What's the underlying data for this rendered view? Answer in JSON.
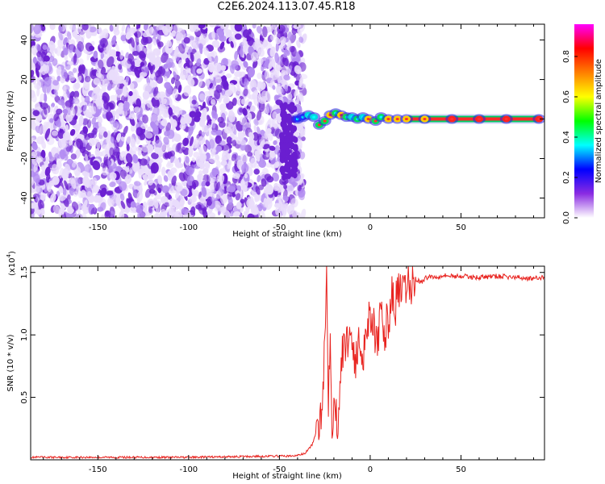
{
  "title": "C2E6.2024.113.07.45.R18",
  "colors": {
    "axis": "#000000",
    "snr_line": "#e8231f",
    "noise_light": "#e9dcfb",
    "noise_mid": "#b38cf2",
    "noise_dark": "#6a1ed0",
    "colorbar_stops": [
      "#ffffff",
      "#8a2be2",
      "#0000ff",
      "#00ffff",
      "#00ff00",
      "#ffff00",
      "#ff7f00",
      "#ff0000",
      "#ff00ff"
    ]
  },
  "colorbar": {
    "label": "Normalized spectral amplitude",
    "ticks": [
      "0.0",
      "0.2",
      "0.4",
      "0.6",
      "0.8"
    ],
    "tick_values": [
      0.0,
      0.2,
      0.4,
      0.6,
      0.8
    ],
    "range": [
      0,
      0.96
    ]
  },
  "chart_data": [
    {
      "type": "heatmap",
      "title": "",
      "xlabel": "Height of straight line (km)",
      "ylabel": "Frequency (Hz)",
      "xlim": [
        -187,
        96
      ],
      "ylim": [
        -50,
        48
      ],
      "x_ticks": [
        "-150",
        "-100",
        "-50",
        "0",
        "50"
      ],
      "x_tick_values": [
        -150,
        -100,
        -50,
        0,
        50
      ],
      "y_ticks": [
        "-40",
        "-20",
        "0",
        "20",
        "40"
      ],
      "y_tick_values": [
        -40,
        -20,
        0,
        20,
        40
      ],
      "noise_region_x": [
        -187,
        -40
      ],
      "signal_track": [
        {
          "x": -40,
          "y": 0,
          "a": 0.35
        },
        {
          "x": -37,
          "y": 1,
          "a": 0.45
        },
        {
          "x": -34,
          "y": 2,
          "a": 0.55
        },
        {
          "x": -31,
          "y": 1,
          "a": 0.5
        },
        {
          "x": -28,
          "y": -3,
          "a": 0.65
        },
        {
          "x": -25,
          "y": -1,
          "a": 0.7
        },
        {
          "x": -22,
          "y": 2,
          "a": 0.75
        },
        {
          "x": -19,
          "y": 3,
          "a": 0.6
        },
        {
          "x": -16,
          "y": 2,
          "a": 0.85
        },
        {
          "x": -13,
          "y": 1,
          "a": 0.6
        },
        {
          "x": -10,
          "y": 1,
          "a": 0.55
        },
        {
          "x": -7,
          "y": 0,
          "a": 0.6
        },
        {
          "x": -4,
          "y": 1,
          "a": 0.55
        },
        {
          "x": -1,
          "y": 0,
          "a": 0.75
        },
        {
          "x": 3,
          "y": -1,
          "a": 0.7
        },
        {
          "x": 6,
          "y": 1,
          "a": 0.6
        },
        {
          "x": 10,
          "y": 0,
          "a": 0.8
        },
        {
          "x": 15,
          "y": 0,
          "a": 0.85
        },
        {
          "x": 20,
          "y": 0,
          "a": 0.8
        },
        {
          "x": 30,
          "y": 0,
          "a": 0.85
        },
        {
          "x": 45,
          "y": 0,
          "a": 0.9
        },
        {
          "x": 60,
          "y": 0,
          "a": 0.92
        },
        {
          "x": 75,
          "y": 0,
          "a": 0.93
        },
        {
          "x": 93,
          "y": 0,
          "a": 0.95
        }
      ]
    },
    {
      "type": "line",
      "title": "",
      "xlabel": "Height of straight line (km)",
      "ylabel": "SNR (10 * v/v)",
      "y_scale_label": "(x10",
      "y_scale_exp": "4",
      "xlim": [
        -187,
        96
      ],
      "ylim": [
        0,
        1.55
      ],
      "x_ticks": [
        "-150",
        "-100",
        "-50",
        "0",
        "50"
      ],
      "x_tick_values": [
        -150,
        -100,
        -50,
        0,
        50
      ],
      "y_ticks": [
        "0.5",
        "1.0",
        "1.5"
      ],
      "y_tick_values": [
        0.5,
        1.0,
        1.5
      ],
      "series": [
        {
          "name": "",
          "x": [
            -187,
            -150,
            -100,
            -50,
            -42,
            -36,
            -32,
            -29,
            -27,
            -25,
            -24,
            -23,
            -22,
            -21,
            -20,
            -19,
            -18,
            -16,
            -14,
            -12,
            -10,
            -8,
            -6,
            -4,
            -2,
            0,
            2,
            4,
            6,
            8,
            10,
            12,
            14,
            16,
            18,
            20,
            22,
            25,
            28,
            32,
            36,
            40,
            45,
            50,
            60,
            70,
            80,
            90,
            96
          ],
          "y": [
            0.02,
            0.02,
            0.02,
            0.03,
            0.03,
            0.05,
            0.12,
            0.25,
            0.4,
            0.9,
            1.52,
            0.5,
            1.1,
            0.3,
            0.45,
            0.35,
            0.3,
            0.8,
            0.9,
            1.0,
            1.0,
            0.75,
            0.95,
            0.85,
            1.05,
            1.2,
            1.1,
            0.85,
            1.2,
            1.0,
            1.15,
            1.3,
            1.25,
            1.35,
            1.3,
            1.4,
            1.38,
            1.45,
            1.42,
            1.47,
            1.46,
            1.48,
            1.47,
            1.47,
            1.46,
            1.47,
            1.46,
            1.45,
            1.46
          ]
        }
      ]
    }
  ]
}
